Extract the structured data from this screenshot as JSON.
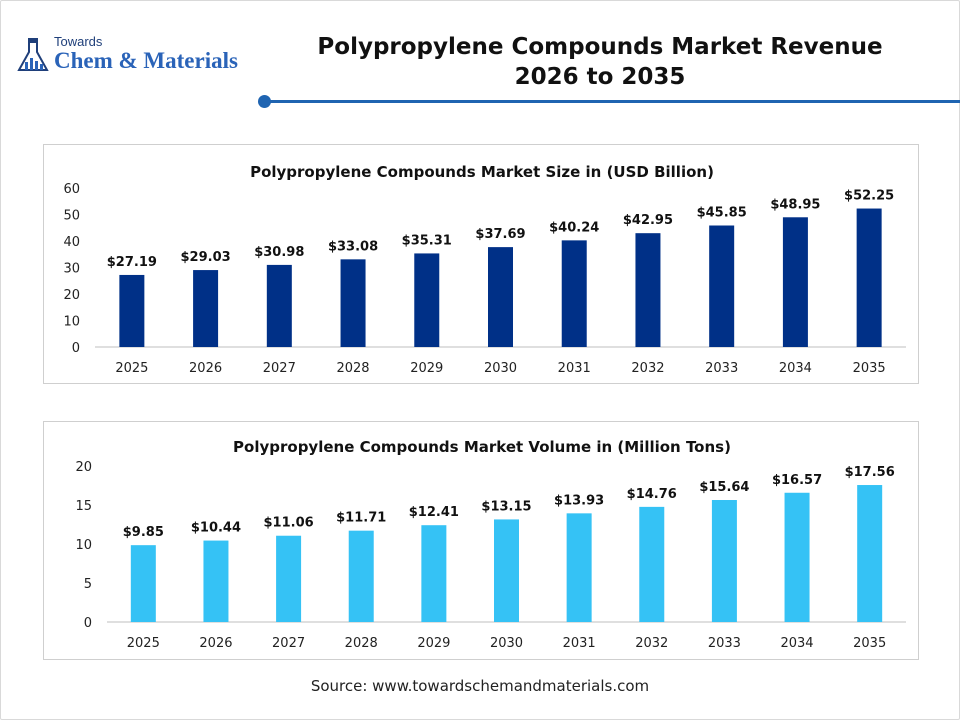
{
  "logo": {
    "top_text": "Towards",
    "main_text": "Chem & Materials"
  },
  "header": {
    "title_line1": "Polypropylene Compounds Market Revenue",
    "title_line2": "2026 to 2035"
  },
  "source": "Source: www.towardschemandmaterials.com",
  "colors": {
    "accent": "#1f64b1",
    "bar_dark": "#003087",
    "bar_light": "#35c2f5"
  },
  "chart_data": [
    {
      "type": "bar",
      "title": "Polypropylene Compounds Market Size in (USD Billion)",
      "xlabel": "",
      "ylabel": "",
      "categories": [
        "2025",
        "2026",
        "2027",
        "2028",
        "2029",
        "2030",
        "2031",
        "2032",
        "2033",
        "2034",
        "2035"
      ],
      "values": [
        27.19,
        29.03,
        30.98,
        33.08,
        35.31,
        37.69,
        40.24,
        42.95,
        45.85,
        48.95,
        52.25
      ],
      "data_labels": [
        "$27.19",
        "$29.03",
        "$30.98",
        "$33.08",
        "$35.31",
        "$37.69",
        "$40.24",
        "$42.95",
        "$45.85",
        "$48.95",
        "$52.25"
      ],
      "ylim": [
        0,
        60
      ],
      "yticks": [
        "0",
        "10",
        "20",
        "30",
        "40",
        "50",
        "60"
      ],
      "color": "#003087",
      "grid": false,
      "legend": "none"
    },
    {
      "type": "bar",
      "title": "Polypropylene Compounds Market Volume in (Million Tons)",
      "xlabel": "",
      "ylabel": "",
      "categories": [
        "2025",
        "2026",
        "2027",
        "2028",
        "2029",
        "2030",
        "2031",
        "2032",
        "2033",
        "2034",
        "2035"
      ],
      "values": [
        9.85,
        10.44,
        11.06,
        11.71,
        12.41,
        13.15,
        13.93,
        14.76,
        15.64,
        16.57,
        17.56
      ],
      "data_labels": [
        "$9.85",
        "$10.44",
        "$11.06",
        "$11.71",
        "$12.41",
        "$13.15",
        "$13.93",
        "$14.76",
        "$15.64",
        "$16.57",
        "$17.56"
      ],
      "ylim": [
        0,
        20
      ],
      "yticks": [
        "0",
        "5",
        "10",
        "15",
        "20"
      ],
      "color": "#35c2f5",
      "grid": false,
      "legend": "none"
    }
  ]
}
